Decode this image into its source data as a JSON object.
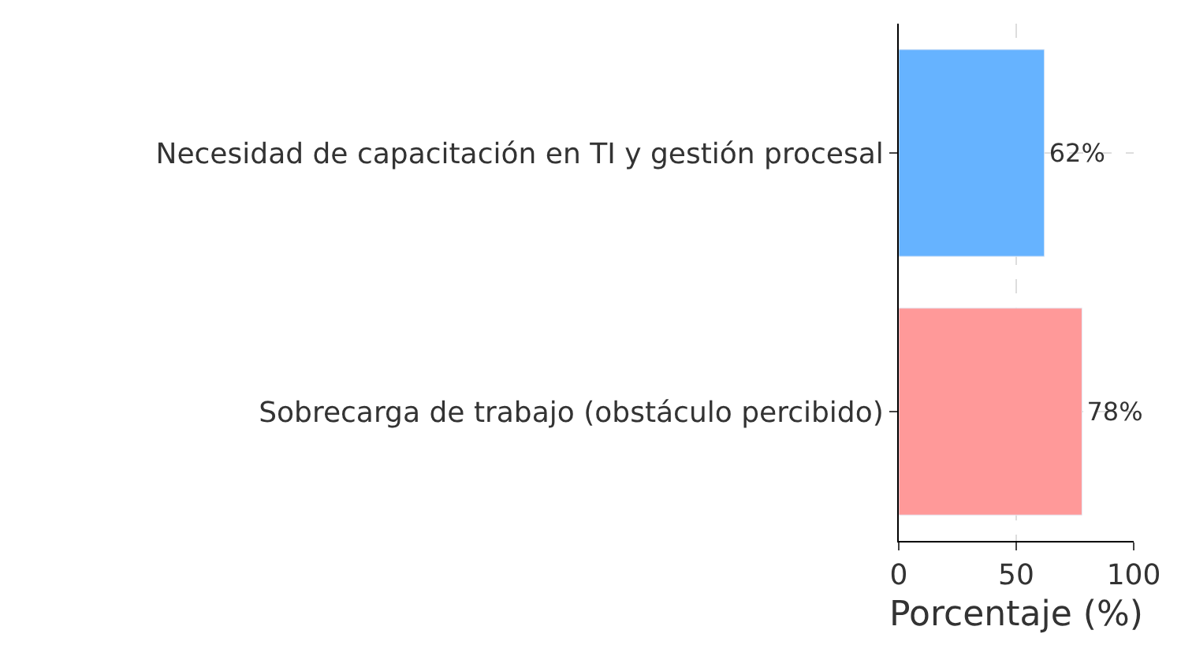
{
  "chart_data": {
    "type": "bar",
    "orientation": "horizontal",
    "xlabel": "Porcentaje (%)",
    "categories": [
      "Necesidad de capacitación en TI y gestión procesal",
      "Sobrecarga de trabajo (obstáculo percibido)"
    ],
    "values": [
      62,
      78
    ],
    "colors": [
      "#66b3ff",
      "#ff9999"
    ],
    "value_labels": [
      "62%",
      "78%"
    ],
    "xlim": [
      0,
      100
    ],
    "xticks": [
      0,
      50,
      100
    ],
    "grid": true
  }
}
